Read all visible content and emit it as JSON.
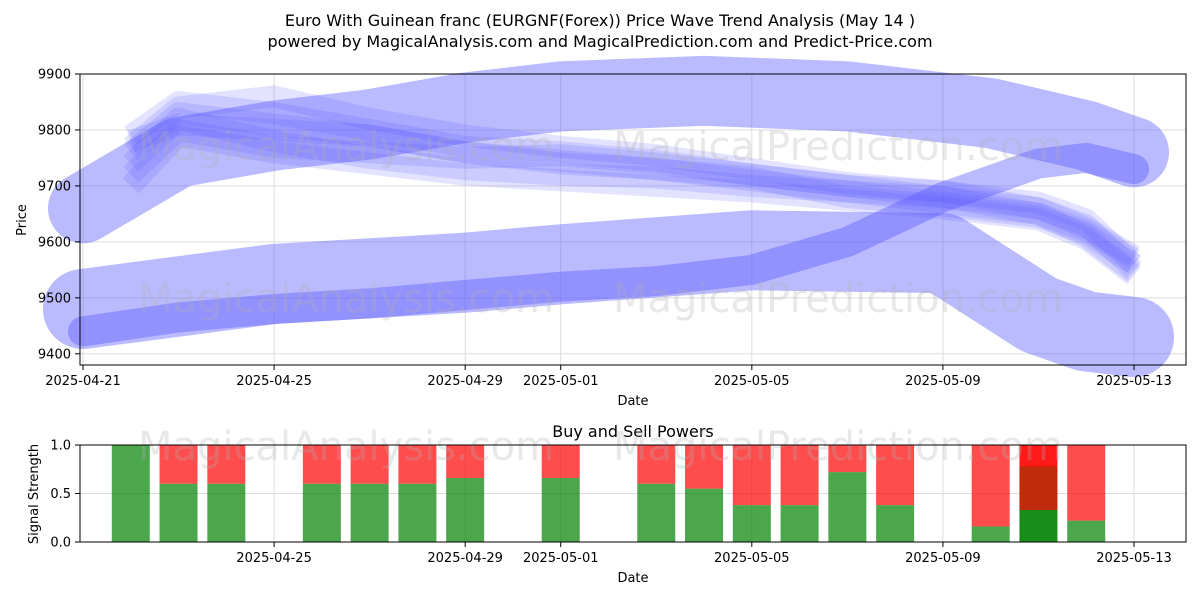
{
  "header": {
    "title_line1": "Euro With Guinean franc (EURGNF(Forex)) Price Wave Trend Analysis (May 14 )",
    "title_line2": "powered by MagicalAnalysis.com and MagicalPrediction.com and Predict-Price.com"
  },
  "watermarks": [
    "MagicalAnalysis.com",
    "MagicalPrediction.com"
  ],
  "colors": {
    "band": "#5a5aff",
    "buy": "#008000",
    "sell": "#ff0000",
    "grid": "#dddddd"
  },
  "chart_data": [
    {
      "type": "area",
      "title": "",
      "xlabel": "Date",
      "ylabel": "Price",
      "ylim": [
        9380,
        9900
      ],
      "y_ticks": [
        9400,
        9500,
        9600,
        9700,
        9800,
        9900
      ],
      "x_ticks": [
        "2025-04-21",
        "2025-04-25",
        "2025-04-29",
        "2025-05-01",
        "2025-05-05",
        "2025-05-09",
        "2025-05-13"
      ],
      "grid": true,
      "series": [
        {
          "x": [
            "2025-04-21",
            "2025-04-23",
            "2025-04-25",
            "2025-04-27",
            "2025-04-29",
            "2025-05-01",
            "2025-05-04",
            "2025-05-07",
            "2025-05-10",
            "2025-05-12",
            "2025-05-13"
          ],
          "values": [
            9660,
            9760,
            9790,
            9810,
            9840,
            9860,
            9870,
            9860,
            9830,
            9790,
            9760
          ],
          "width": 70
        },
        {
          "x": [
            "2025-04-21",
            "2025-04-23",
            "2025-04-25",
            "2025-04-27",
            "2025-04-29",
            "2025-05-01",
            "2025-05-03",
            "2025-05-05",
            "2025-05-07",
            "2025-05-09",
            "2025-05-11",
            "2025-05-12",
            "2025-05-13"
          ],
          "values": [
            9440,
            9465,
            9480,
            9490,
            9505,
            9520,
            9530,
            9550,
            9600,
            9680,
            9740,
            9750,
            9730
          ],
          "width": 30
        },
        {
          "x": [
            "2025-04-21",
            "2025-04-25",
            "2025-04-29",
            "2025-05-01",
            "2025-05-05",
            "2025-05-09",
            "2025-05-11",
            "2025-05-12",
            "2025-05-13"
          ],
          "values": [
            9480,
            9525,
            9545,
            9560,
            9585,
            9580,
            9470,
            9440,
            9430
          ],
          "width": 80
        },
        {
          "x": [
            "2025-04-22",
            "2025-04-23",
            "2025-04-25",
            "2025-04-27",
            "2025-04-29",
            "2025-05-01",
            "2025-05-03",
            "2025-05-05",
            "2025-05-07",
            "2025-05-09",
            "2025-05-11",
            "2025-05-12",
            "2025-05-13"
          ],
          "values": [
            9720,
            9800,
            9770,
            9760,
            9750,
            9755,
            9740,
            9720,
            9700,
            9690,
            9670,
            9640,
            9560
          ],
          "width": 22
        },
        {
          "x": [
            "2025-04-22",
            "2025-04-23",
            "2025-04-25",
            "2025-04-27",
            "2025-04-29",
            "2025-05-01",
            "2025-05-03",
            "2025-05-05",
            "2025-05-07",
            "2025-05-09",
            "2025-05-11",
            "2025-05-12",
            "2025-05-13"
          ],
          "values": [
            9760,
            9830,
            9810,
            9790,
            9760,
            9740,
            9730,
            9710,
            9690,
            9680,
            9660,
            9630,
            9550
          ],
          "width": 22
        },
        {
          "x": [
            "2025-04-22",
            "2025-04-23",
            "2025-04-25",
            "2025-04-27",
            "2025-04-29",
            "2025-05-01",
            "2025-05-03",
            "2025-05-05",
            "2025-05-07",
            "2025-05-09",
            "2025-05-11",
            "2025-05-12",
            "2025-05-13"
          ],
          "values": [
            9790,
            9850,
            9830,
            9800,
            9770,
            9760,
            9745,
            9720,
            9700,
            9680,
            9650,
            9620,
            9570
          ],
          "width": 22
        },
        {
          "x": [
            "2025-04-22",
            "2025-04-23",
            "2025-04-25",
            "2025-04-27",
            "2025-04-29",
            "2025-05-01",
            "2025-05-03",
            "2025-05-05",
            "2025-05-07",
            "2025-05-09",
            "2025-05-11",
            "2025-05-12",
            "2025-05-13"
          ],
          "values": [
            9740,
            9820,
            9780,
            9750,
            9730,
            9720,
            9715,
            9700,
            9690,
            9670,
            9650,
            9610,
            9545
          ],
          "width": 22
        },
        {
          "x": [
            "2025-04-22",
            "2025-04-23",
            "2025-04-25",
            "2025-04-27",
            "2025-04-29",
            "2025-05-01",
            "2025-05-03",
            "2025-05-05",
            "2025-05-07",
            "2025-05-09",
            "2025-05-11",
            "2025-05-12",
            "2025-05-13"
          ],
          "values": [
            9700,
            9790,
            9760,
            9740,
            9720,
            9710,
            9700,
            9690,
            9675,
            9660,
            9640,
            9605,
            9540
          ],
          "width": 22
        },
        {
          "x": [
            "2025-04-22",
            "2025-04-23",
            "2025-04-25",
            "2025-04-27",
            "2025-04-29",
            "2025-05-01",
            "2025-05-03",
            "2025-05-05",
            "2025-05-07",
            "2025-05-09",
            "2025-05-11",
            "2025-05-12",
            "2025-05-13"
          ],
          "values": [
            9770,
            9840,
            9860,
            9820,
            9790,
            9770,
            9755,
            9730,
            9705,
            9690,
            9660,
            9625,
            9575
          ],
          "width": 22
        },
        {
          "x": [
            "2025-04-22",
            "2025-04-23",
            "2025-04-25",
            "2025-04-27",
            "2025-04-29",
            "2025-05-01",
            "2025-05-03",
            "2025-05-05",
            "2025-05-07",
            "2025-05-09",
            "2025-05-11",
            "2025-05-12",
            "2025-05-13"
          ],
          "values": [
            9780,
            9810,
            9800,
            9790,
            9760,
            9745,
            9730,
            9715,
            9680,
            9665,
            9645,
            9615,
            9560
          ],
          "width": 22
        }
      ]
    },
    {
      "type": "bar",
      "title": "Buy and Sell Powers",
      "xlabel": "Date",
      "ylabel": "Signal Strength",
      "ylim": [
        0,
        1
      ],
      "y_ticks": [
        "0.0",
        "0.5",
        "1.0"
      ],
      "x_ticks": [
        "2025-04-25",
        "2025-04-29",
        "2025-05-01",
        "2025-05-05",
        "2025-05-09",
        "2025-05-13"
      ],
      "x": [
        "2025-04-22",
        "2025-04-23",
        "2025-04-24",
        "2025-04-26",
        "2025-04-27",
        "2025-04-28",
        "2025-04-29",
        "2025-05-01",
        "2025-05-03",
        "2025-05-04",
        "2025-05-05",
        "2025-05-06",
        "2025-05-07",
        "2025-05-08",
        "2025-05-10",
        "2025-05-11",
        "2025-05-12"
      ],
      "series": [
        {
          "name": "",
          "values": [
            1.0,
            0.6,
            0.6,
            0.6,
            0.6,
            0.6,
            0.66,
            0.66,
            0.6,
            0.55,
            0.38,
            0.38,
            0.72,
            0.38,
            0.16,
            0.33,
            0.22
          ]
        },
        {
          "name": "",
          "values": [
            0.0,
            0.4,
            0.4,
            0.4,
            0.4,
            0.4,
            0.34,
            0.34,
            0.4,
            0.45,
            0.62,
            0.62,
            0.28,
            0.62,
            0.84,
            0.67,
            0.78
          ]
        }
      ]
    }
  ]
}
